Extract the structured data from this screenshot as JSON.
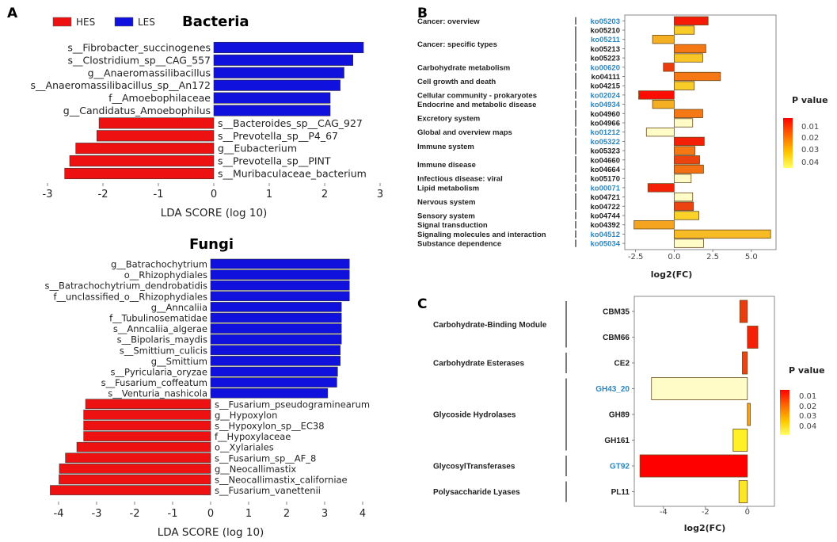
{
  "panel_labels": {
    "a": "A",
    "b": "B",
    "c": "C"
  },
  "colors": {
    "hes": "#ee1111",
    "les": "#1111dd",
    "highlight_label": "#2a86bf"
  },
  "chart_data": [
    {
      "type": "bar",
      "orientation": "horizontal",
      "title": "Bacteria",
      "xlabel": "LDA SCORE (log 10)",
      "xlim": [
        -3.1,
        3.1
      ],
      "xticks": [
        -3,
        -2,
        -1,
        0,
        1,
        2,
        3
      ],
      "legend": {
        "placement": "top-left",
        "entries": [
          {
            "name": "HES",
            "color": "#ee1111"
          },
          {
            "name": "LES",
            "color": "#1111dd"
          }
        ]
      },
      "categories": [
        "s__Fibrobacter_succinogenes",
        "s__Clostridium_sp__CAG_557",
        "g__Anaeromassilibacillus",
        "s__Anaeromassilibacillus_sp__An172",
        "f__Amoebophilaceae",
        "g__Candidatus_Amoebophilus",
        "s__Bacteroides_sp__CAG_927",
        "s__Prevotella_sp__P4_67",
        "g__Eubacterium",
        "s__Prevotella_sp__PINT",
        "s__Muribaculaceae_bacterium"
      ],
      "values": [
        2.7,
        2.51,
        2.35,
        2.28,
        2.1,
        2.1,
        -2.07,
        -2.11,
        -2.49,
        -2.6,
        -2.69
      ],
      "groups": [
        "LES",
        "LES",
        "LES",
        "LES",
        "LES",
        "LES",
        "HES",
        "HES",
        "HES",
        "HES",
        "HES"
      ]
    },
    {
      "type": "bar",
      "orientation": "horizontal",
      "title": "Fungi",
      "xlabel": "LDA SCORE (log 10)",
      "xlim": [
        -4.4,
        4.3
      ],
      "xticks": [
        -4,
        -3,
        -2,
        -1,
        0,
        1,
        2,
        3,
        4
      ],
      "categories": [
        "g__Batrachochytrium",
        "o__Rhizophydiales",
        "s__Batrachochytrium_dendrobatidis",
        "f__unclassified_o__Rhizophydiales",
        "g__Anncaliia",
        "f__Tubulinosematidae",
        "s__Anncaliia_algerae",
        "s__Bipolaris_maydis",
        "s__Smittium_culicis",
        "g__Smittium",
        "s__Pyricularia_oryzae",
        "s__Fusarium_coffeatum",
        "s__Venturia_nashicola",
        "s__Fusarium_pseudograminearum",
        "g__Hypoxylon",
        "s__Hypoxylon_sp__EC38",
        "f__Hypoxylaceae",
        "o__Xylariales",
        "s__Fusarium_sp__AF_8",
        "g__Neocallimastix",
        "s__Neocallimastix_californiae",
        "s__Fusarium_vanettenii"
      ],
      "values": [
        3.65,
        3.65,
        3.65,
        3.65,
        3.44,
        3.44,
        3.44,
        3.44,
        3.41,
        3.41,
        3.34,
        3.32,
        3.08,
        -3.29,
        -3.34,
        -3.34,
        -3.34,
        -3.52,
        -3.82,
        -3.98,
        -3.99,
        -4.22
      ],
      "groups": [
        "LES",
        "LES",
        "LES",
        "LES",
        "LES",
        "LES",
        "LES",
        "LES",
        "LES",
        "LES",
        "LES",
        "LES",
        "LES",
        "HES",
        "HES",
        "HES",
        "HES",
        "HES",
        "HES",
        "HES",
        "HES",
        "HES"
      ]
    },
    {
      "type": "bar",
      "orientation": "horizontal",
      "xlabel": "log2(FC)",
      "xlim": [
        -3.2,
        6.6
      ],
      "xticks": [
        "-2.5",
        "0.0",
        "2.5",
        "5.0"
      ],
      "legend": {
        "title": "P value",
        "placement": "right",
        "ticks": [
          "0.01",
          "0.02",
          "0.03",
          "0.04"
        ]
      },
      "categories": [
        "ko05203",
        "ko05210",
        "ko05211",
        "ko05213",
        "ko05223",
        "ko00620",
        "ko04111",
        "ko04215",
        "ko02024",
        "ko04934",
        "ko04960",
        "ko04966",
        "ko01212",
        "ko05322",
        "ko05323",
        "ko04660",
        "ko04664",
        "ko05170",
        "ko00071",
        "ko04721",
        "ko04722",
        "ko04744",
        "ko04392",
        "ko04512",
        "ko05034"
      ],
      "values": [
        2.2,
        1.3,
        -1.4,
        2.05,
        1.85,
        -0.7,
        3.0,
        1.3,
        -2.3,
        -1.4,
        1.85,
        1.2,
        -1.8,
        1.95,
        1.35,
        1.65,
        1.9,
        1.1,
        -1.7,
        1.2,
        1.25,
        1.6,
        -2.6,
        6.25,
        1.9
      ],
      "p_values": [
        0.007,
        0.035,
        0.03,
        0.02,
        0.034,
        0.012,
        0.02,
        0.035,
        0.005,
        0.03,
        0.02,
        0.05,
        0.05,
        0.008,
        0.02,
        0.013,
        0.019,
        0.05,
        0.008,
        0.05,
        0.013,
        0.036,
        0.028,
        0.032,
        0.05
      ],
      "highlighted": [
        "ko05203",
        "ko05211",
        "ko00620",
        "ko02024",
        "ko04934",
        "ko01212",
        "ko05322",
        "ko00071",
        "ko04512",
        "ko05034"
      ],
      "category_groups": [
        {
          "label": "Cancer: overview",
          "rows": [
            0,
            0
          ]
        },
        {
          "label": "Cancer: specific types",
          "rows": [
            1,
            4
          ]
        },
        {
          "label": "Carbohydrate metabolism",
          "rows": [
            5,
            5
          ]
        },
        {
          "label": "Cell growth and death",
          "rows": [
            6,
            7
          ]
        },
        {
          "label": "Cellular community - prokaryotes",
          "rows": [
            8,
            8
          ]
        },
        {
          "label": "Endocrine and metabolic disease",
          "rows": [
            9,
            9
          ]
        },
        {
          "label": "Excretory system",
          "rows": [
            10,
            11
          ]
        },
        {
          "label": "Global and overview maps",
          "rows": [
            12,
            12
          ]
        },
        {
          "label": "Immune system",
          "rows": [
            13,
            14
          ]
        },
        {
          "label": "Immune disease",
          "rows": [
            15,
            16
          ]
        },
        {
          "label": "Infectious disease: viral",
          "rows": [
            17,
            17
          ]
        },
        {
          "label": "Lipid metabolism",
          "rows": [
            18,
            18
          ]
        },
        {
          "label": "Nervous system",
          "rows": [
            19,
            20
          ]
        },
        {
          "label": "Sensory system",
          "rows": [
            21,
            21
          ]
        },
        {
          "label": "Signal transduction",
          "rows": [
            22,
            22
          ]
        },
        {
          "label": "Signaling molecules and interaction",
          "rows": [
            23,
            23
          ]
        },
        {
          "label": "Substance dependence",
          "rows": [
            24,
            24
          ]
        }
      ]
    },
    {
      "type": "bar",
      "orientation": "horizontal",
      "xlabel": "log2(FC)",
      "xlim": [
        -5.39,
        1.29
      ],
      "xticks": [
        "-4",
        "-2",
        "0"
      ],
      "legend": {
        "title": "P value",
        "placement": "right",
        "ticks": [
          "0.01",
          "0.02",
          "0.03",
          "0.04"
        ]
      },
      "categories": [
        "CBM35",
        "CBM66",
        "CE2",
        "GH43_20",
        "GH89",
        "GH161",
        "GT92",
        "PL11"
      ],
      "values": [
        -0.36,
        0.5,
        -0.24,
        -4.57,
        0.14,
        -0.68,
        -5.12,
        -0.4
      ],
      "p_values": [
        0.012,
        0.008,
        0.013,
        0.05,
        0.028,
        0.042,
        0.003,
        0.04
      ],
      "highlighted": [
        "GH43_20",
        "GT92"
      ],
      "category_groups": [
        {
          "label": "Carbohydrate-Binding Module",
          "rows": [
            0,
            1
          ]
        },
        {
          "label": "Carbohydrate Esterases",
          "rows": [
            2,
            2
          ]
        },
        {
          "label": "Glycoside Hydrolases",
          "rows": [
            3,
            5
          ]
        },
        {
          "label": "GlycosylTransferases",
          "rows": [
            6,
            6
          ]
        },
        {
          "label": "Polysaccharide Lyases",
          "rows": [
            7,
            7
          ]
        }
      ]
    }
  ]
}
